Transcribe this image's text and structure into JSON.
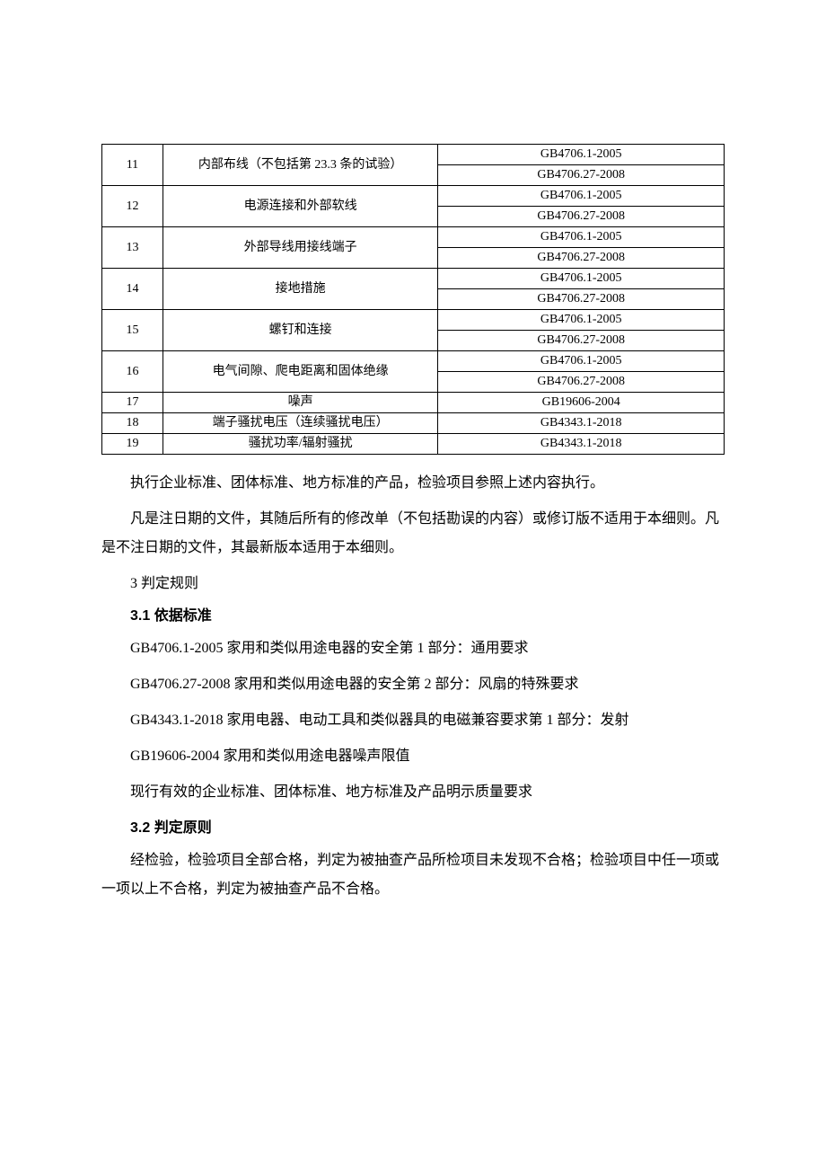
{
  "table": {
    "rows": [
      {
        "num": "11",
        "desc": "内部布线（不包括第 23.3 条的试验）",
        "stds": [
          "GB4706.1-2005",
          "GB4706.27-2008"
        ]
      },
      {
        "num": "12",
        "desc": "电源连接和外部软线",
        "stds": [
          "GB4706.1-2005",
          "GB4706.27-2008"
        ]
      },
      {
        "num": "13",
        "desc": "外部导线用接线端子",
        "stds": [
          "GB4706.1-2005",
          "GB4706.27-2008"
        ]
      },
      {
        "num": "14",
        "desc": "接地措施",
        "stds": [
          "GB4706.1-2005",
          "GB4706.27-2008"
        ]
      },
      {
        "num": "15",
        "desc": "螺钉和连接",
        "stds": [
          "GB4706.1-2005",
          "GB4706.27-2008"
        ]
      },
      {
        "num": "16",
        "desc": "电气间隙、爬电距离和固体绝缘",
        "stds": [
          "GB4706.1-2005",
          "GB4706.27-2008"
        ]
      },
      {
        "num": "17",
        "desc": "噪声",
        "stds": [
          "GB19606-2004"
        ]
      },
      {
        "num": "18",
        "desc": "端子骚扰电压（连续骚扰电压）",
        "stds": [
          "GB4343.1-2018"
        ]
      },
      {
        "num": "19",
        "desc": "骚扰功率/辐射骚扰",
        "stds": [
          "GB4343.1-2018"
        ]
      }
    ]
  },
  "para1": "执行企业标准、团体标准、地方标准的产品，检验项目参照上述内容执行。",
  "para2": "凡是注日期的文件，其随后所有的修改单（不包括勘误的内容）或修订版不适用于本细则。凡是不注日期的文件，其最新版本适用于本细则。",
  "section3": "3 判定规则",
  "heading31": "3.1 依据标准",
  "std1": "GB4706.1-2005 家用和类似用途电器的安全第 1 部分：通用要求",
  "std2": "GB4706.27-2008 家用和类似用途电器的安全第 2 部分：风扇的特殊要求",
  "std3": "GB4343.1-2018 家用电器、电动工具和类似器具的电磁兼容要求第 1 部分：发射",
  "std4": "GB19606-2004 家用和类似用途电器噪声限值",
  "std5": "现行有效的企业标准、团体标准、地方标准及产品明示质量要求",
  "heading32": "3.2 判定原则",
  "para3": "经检验，检验项目全部合格，判定为被抽查产品所检项目未发现不合格；检验项目中任一项或一项以上不合格，判定为被抽查产品不合格。"
}
